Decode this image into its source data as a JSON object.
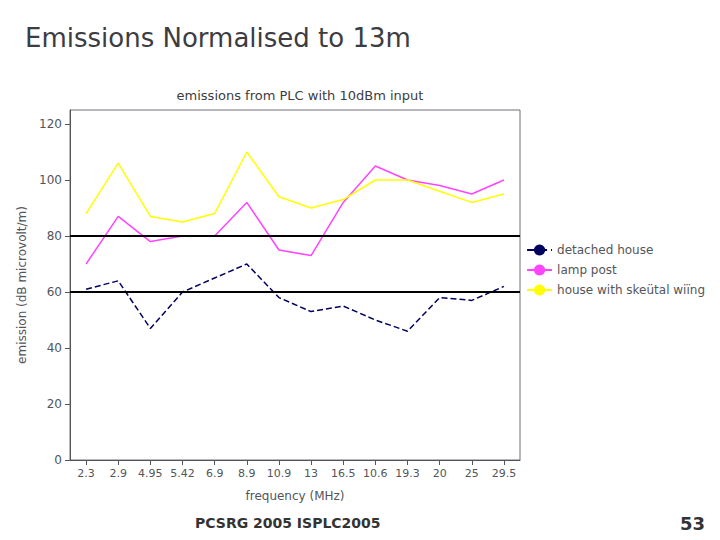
{
  "chart_data": {
    "type": "line",
    "title": "Emissions Normalised to 13m",
    "subtitle": "emissions from PLC with 10dBm input",
    "xlabel": "frequency (MHz)",
    "ylabel": "emission (dB microvolt/m)",
    "categories": [
      "2.3",
      "2.9",
      "4.95",
      "5.42",
      "6.9",
      "8.9",
      "10.9",
      "13",
      "16.5",
      "10.6",
      "19.3",
      "20",
      "25",
      "29.5"
    ],
    "series": [
      {
        "name": "detached house",
        "color": "#000060",
        "line_style": "dashed",
        "values": [
          61,
          64,
          47,
          60,
          65,
          70,
          58,
          53,
          55,
          50,
          46,
          58,
          57,
          62
        ]
      },
      {
        "name": "lamp post",
        "color": "#ff44ff",
        "line_style": "solid",
        "values": [
          70,
          87,
          78,
          80,
          80,
          92,
          75,
          73,
          92,
          105,
          100,
          98,
          95,
          100
        ]
      },
      {
        "name": "house with skeütal wiïng",
        "color": "#ffff00",
        "line_style": "solid",
        "values": [
          88,
          106,
          87,
          85,
          88,
          110,
          94,
          90,
          93,
          100,
          100,
          96,
          92,
          95
        ]
      }
    ],
    "hlines": [
      80,
      60
    ],
    "ylim": [
      0,
      125
    ],
    "yticks": [
      0,
      20,
      40,
      60,
      80,
      100,
      120
    ],
    "grid": false,
    "legend": "right",
    "annotations": [
      "PCSRG 2005 ISPLC2005",
      "53"
    ]
  }
}
